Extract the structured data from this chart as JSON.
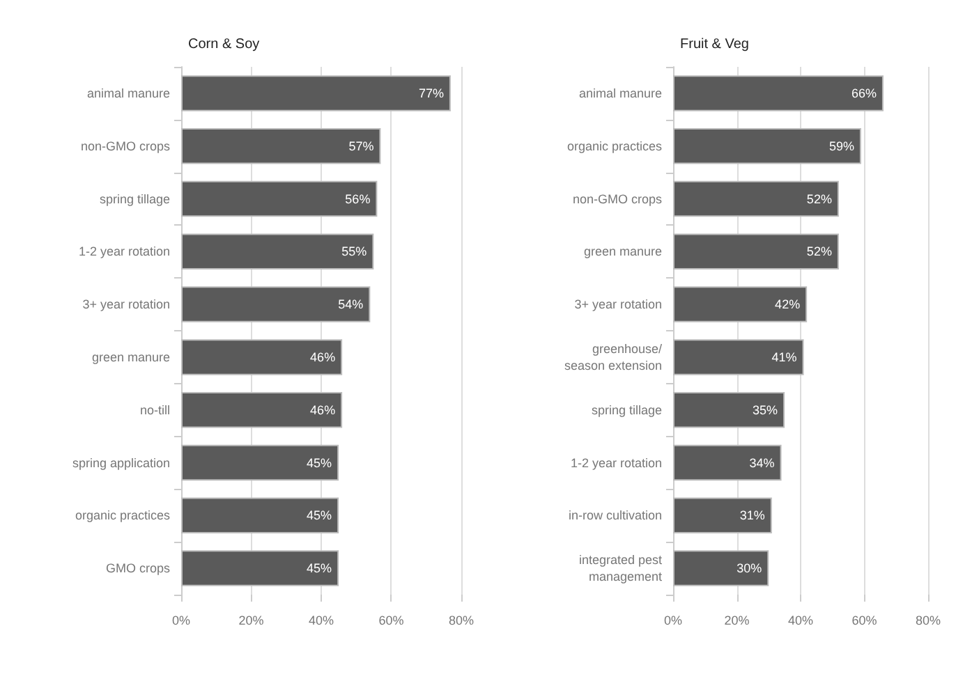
{
  "chart_data": [
    {
      "type": "bar",
      "title": "Corn & Soy",
      "orientation": "horizontal",
      "categories": [
        "animal manure",
        "non-GMO crops",
        "spring tillage",
        "1-2 year rotation",
        "3+ year rotation",
        "green manure",
        "no-till",
        "spring application",
        "organic practices",
        "GMO crops"
      ],
      "values": [
        77,
        57,
        56,
        55,
        54,
        46,
        46,
        45,
        45,
        45
      ],
      "color": "#5a5a5a",
      "value_labels": [
        "77%",
        "57%",
        "56%",
        "55%",
        "54%",
        "46%",
        "46%",
        "45%",
        "45%",
        "45%"
      ],
      "xlim": [
        0,
        80
      ],
      "xticks": [
        {
          "value": 0,
          "label": "0%"
        },
        {
          "value": 20,
          "label": "20%"
        },
        {
          "value": 40,
          "label": "40%"
        },
        {
          "value": 60,
          "label": "60%"
        },
        {
          "value": 80,
          "label": "80%"
        }
      ],
      "grid": "x"
    },
    {
      "type": "bar",
      "title": "Fruit & Veg",
      "orientation": "horizontal",
      "categories": [
        "animal manure",
        "organic practices",
        "non-GMO crops",
        "green manure",
        "3+ year rotation",
        "greenhouse/\nseason extension",
        "spring tillage",
        "1-2 year rotation",
        "in-row cultivation",
        "integrated pest\nmanagement"
      ],
      "values": [
        66,
        59,
        52,
        52,
        42,
        41,
        35,
        34,
        31,
        30
      ],
      "color": "#5a5a5a",
      "value_labels": [
        "66%",
        "59%",
        "52%",
        "52%",
        "42%",
        "41%",
        "35%",
        "34%",
        "31%",
        "30%"
      ],
      "xlim": [
        0,
        80
      ],
      "xticks": [
        {
          "value": 0,
          "label": "0%"
        },
        {
          "value": 20,
          "label": "20%"
        },
        {
          "value": 40,
          "label": "40%"
        },
        {
          "value": 60,
          "label": "60%"
        },
        {
          "value": 80,
          "label": "80%"
        }
      ],
      "grid": "x"
    }
  ]
}
